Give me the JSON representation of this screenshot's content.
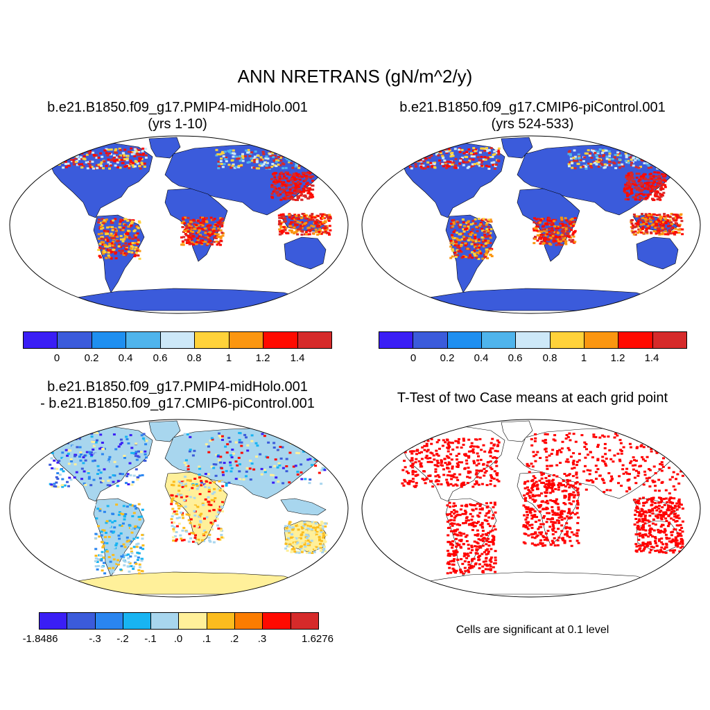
{
  "title": "ANN NRETRANS (gN/m^2/y)",
  "panels": {
    "p1": {
      "line1": "b.e21.B1850.f09_g17.PMIP4-midHolo.001",
      "line2": "(yrs 1-10)"
    },
    "p2": {
      "line1": "b.e21.B1850.f09_g17.CMIP6-piControl.001",
      "line2": "(yrs 524-533)"
    },
    "p3": {
      "line1": "b.e21.B1850.f09_g17.PMIP4-midHolo.001",
      "line2": "- b.e21.B1850.f09_g17.CMIP6-piControl.001"
    },
    "p4": {
      "line1": "T-Test of two Case means at each grid point"
    }
  },
  "colorbars": {
    "abs": {
      "colors": [
        "#3a1ef5",
        "#3b5bdb",
        "#1f8ff0",
        "#4fb4ec",
        "#cde8f8",
        "#ffd23a",
        "#fb9610",
        "#ff0a00",
        "#d62a2a"
      ],
      "labels": [
        "0",
        "0.2",
        "0.4",
        "0.6",
        "0.8",
        "1",
        "1.2",
        "1.4"
      ]
    },
    "diff": {
      "colors": [
        "#3a1ef5",
        "#3b5bdb",
        "#2a85f0",
        "#18b4f2",
        "#a8d6ee",
        "#fff09a",
        "#fbbc1e",
        "#fb7c00",
        "#ff0a00",
        "#d62a2a"
      ],
      "labels": [
        "-1.8486",
        ".-.3",
        "-.2",
        "-.1",
        ".0",
        ".1",
        ".2",
        ".3",
        "1.6276"
      ]
    }
  },
  "significance_note": "Cells are significant at 0.1 level",
  "map_fill": {
    "antarctica_abs": "#3b5bdb",
    "antarctica_diff": "#fff09a",
    "significant": "#ff0000"
  }
}
